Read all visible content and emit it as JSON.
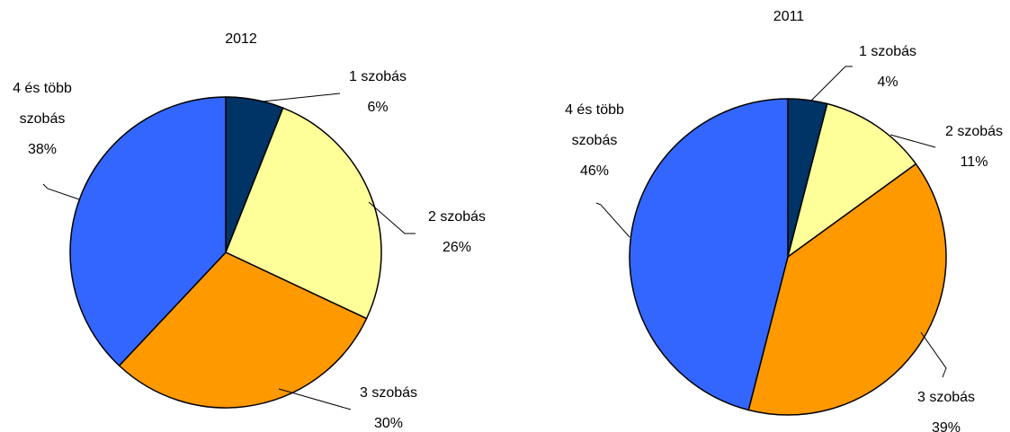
{
  "chart_data": [
    {
      "type": "pie",
      "title": "2012",
      "slices": [
        {
          "name": "1 szobás",
          "value": 6,
          "label": "6%",
          "color": "#003366"
        },
        {
          "name": "2 szobás",
          "value": 26,
          "label": "26%",
          "color": "#FFFF99"
        },
        {
          "name": "3 szobás",
          "value": 30,
          "label": "30%",
          "color": "#FF9900"
        },
        {
          "name_lines": [
            "4 és több",
            "szobás"
          ],
          "value": 38,
          "label": "38%",
          "color": "#3366FF"
        }
      ]
    },
    {
      "type": "pie",
      "title": "2011",
      "slices": [
        {
          "name": "1 szobás",
          "value": 4,
          "label": "4%",
          "color": "#003366"
        },
        {
          "name": "2 szobás",
          "value": 11,
          "label": "11%",
          "color": "#FFFF99"
        },
        {
          "name": "3 szobás",
          "value": 39,
          "label": "39%",
          "color": "#FF9900"
        },
        {
          "name_lines": [
            "4 és több",
            "szobás"
          ],
          "value": 46,
          "label": "46%",
          "color": "#3366FF"
        }
      ]
    }
  ]
}
